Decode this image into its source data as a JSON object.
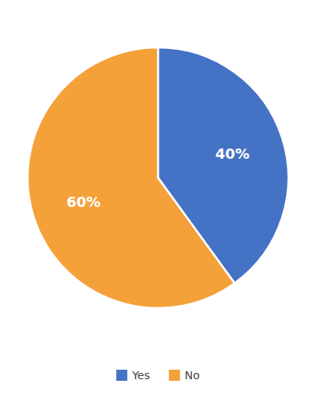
{
  "chart_data": {
    "type": "pie",
    "categories": [
      "Yes",
      "No"
    ],
    "values": [
      40,
      60
    ],
    "value_labels": [
      "40%",
      "60%"
    ],
    "colors": [
      "#4472C4",
      "#F4A13A"
    ],
    "data_labels": true,
    "legend": "bottom"
  }
}
